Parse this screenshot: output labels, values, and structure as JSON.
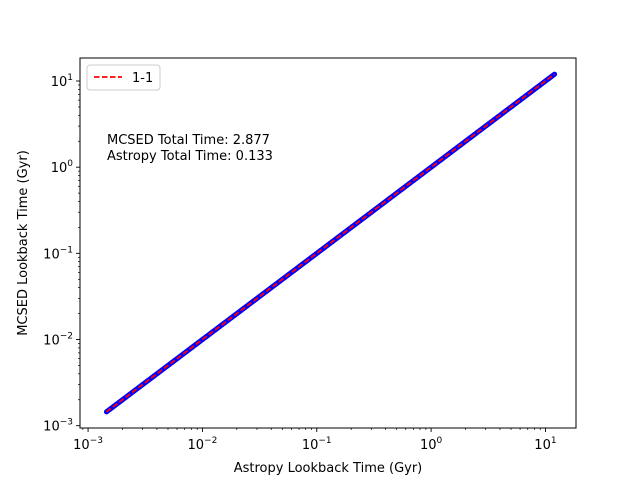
{
  "chart_data": {
    "type": "scatter",
    "xlabel": "Astropy Lookback Time (Gyr)",
    "ylabel": "MCSED Lookback Time (Gyr)",
    "xscale": "log",
    "yscale": "log",
    "xlim": [
      0.00085,
      18.5
    ],
    "ylim": [
      0.00094,
      18.5
    ],
    "xticks": [
      {
        "value": 0.001,
        "base": "10",
        "exp": "−3"
      },
      {
        "value": 0.01,
        "base": "10",
        "exp": "−2"
      },
      {
        "value": 0.1,
        "base": "10",
        "exp": "−1"
      },
      {
        "value": 1,
        "base": "10",
        "exp": "0"
      },
      {
        "value": 10,
        "base": "10",
        "exp": "1"
      }
    ],
    "yticks": [
      {
        "value": 0.001,
        "base": "10",
        "exp": "−3"
      },
      {
        "value": 0.01,
        "base": "10",
        "exp": "−2"
      },
      {
        "value": 0.1,
        "base": "10",
        "exp": "−1"
      },
      {
        "value": 1,
        "base": "10",
        "exp": "0"
      },
      {
        "value": 10,
        "base": "10",
        "exp": "1"
      }
    ],
    "grid": false,
    "legend": {
      "position": "top-left",
      "entries": [
        {
          "label": "1-1",
          "color": "#ff0000",
          "style": "dashed"
        }
      ]
    },
    "series": [
      {
        "marker_color": "#0000ff",
        "x_min": 0.00145,
        "x_max": 12.0,
        "relation": "y = x"
      },
      {
        "name": "1-1",
        "line_color": "#ff0000",
        "style": "dashed",
        "x": [
          0.00145,
          12.0
        ],
        "y": [
          0.00145,
          12.0
        ]
      }
    ],
    "annotations": [
      "MCSED Total Time: 2.877",
      "Astropy Total Time: 0.133"
    ]
  }
}
